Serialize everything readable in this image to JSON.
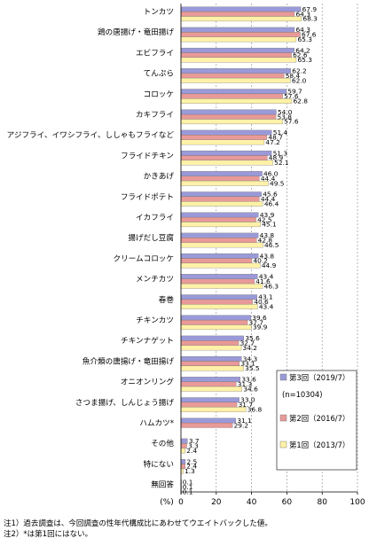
{
  "chart_data": {
    "type": "bar",
    "orientation": "horizontal",
    "categories": [
      "トンカツ",
      "鶏の唐揚げ・竜田揚げ",
      "エビフライ",
      "てんぷら",
      "コロッケ",
      "カキフライ",
      "アジフライ、イワシフライ、ししゃもフライなど",
      "フライドチキン",
      "かきあげ",
      "フライドポテト",
      "イカフライ",
      "揚げだし豆腐",
      "クリームコロッケ",
      "メンチカツ",
      "春巻",
      "チキンカツ",
      "チキンナゲット",
      "魚介類の唐揚げ・竜田揚げ",
      "オニオンリング",
      "さつま揚げ、しんじょう揚げ",
      "ハムカツ*",
      "その他",
      "特にない",
      "無回答"
    ],
    "series": [
      {
        "name": "第3回（2019/7）",
        "color": "#9a9ad8",
        "values": [
          67.9,
          64.3,
          64.2,
          62.2,
          59.7,
          54.0,
          51.4,
          51.3,
          46.0,
          45.6,
          43.9,
          43.8,
          43.8,
          43.4,
          43.1,
          39.6,
          35.6,
          34.3,
          33.6,
          33.0,
          31.1,
          3.7,
          2.5,
          0.1
        ]
      },
      {
        "name": "第2回（2016/7）",
        "color": "#e89a98",
        "values": [
          64.3,
          67.6,
          62.6,
          58.4,
          57.6,
          53.8,
          48.7,
          48.9,
          44.4,
          44.4,
          42.5,
          42.8,
          40.2,
          41.6,
          40.6,
          37.7,
          32.7,
          33.1,
          31.3,
          31.7,
          29.2,
          3.3,
          2.4,
          0.1
        ]
      },
      {
        "name": "第1回（2013/7）",
        "color": "#fff2a8",
        "values": [
          68.3,
          65.3,
          65.3,
          62.0,
          62.8,
          57.6,
          47.2,
          52.1,
          49.5,
          46.4,
          45.1,
          46.5,
          44.9,
          46.3,
          43.4,
          39.9,
          34.2,
          35.5,
          34.6,
          36.8,
          null,
          2.4,
          1.3,
          0.1
        ]
      }
    ],
    "xlim": [
      0,
      100
    ],
    "x_ticks": [
      0,
      20,
      40,
      60,
      80,
      100
    ],
    "xlabel": "(%)",
    "grid": true,
    "legend": {
      "position": "bottom-right",
      "n_label": "(n=10304)"
    }
  },
  "notes": [
    "注1）過去調査は、今回調査の性年代構成比にあわせてウエイトバックした値。",
    "注2）*は第1回にはない。"
  ]
}
